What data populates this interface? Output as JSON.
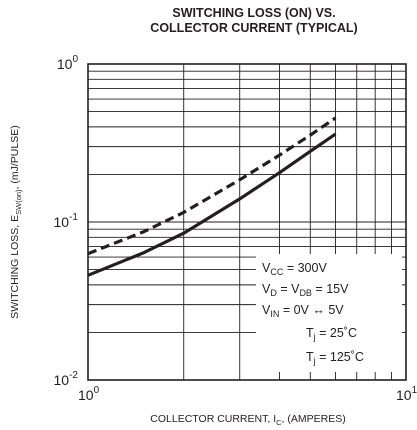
{
  "chart_data": {
    "type": "line",
    "title_line1": "SWITCHING LOSS (ON) VS.",
    "title_line2": "COLLECTOR CURRENT (TYPICAL)",
    "xlabel": {
      "main": "COLLECTOR CURRENT, I",
      "sub": "C",
      "rest": ", (AMPERES)"
    },
    "ylabel": {
      "main": "SWITCHING LOSS, E",
      "sub": "SW(on)",
      "rest": ",  (mJ/PULSE)"
    },
    "x_scale": "log",
    "y_scale": "log",
    "xlim": [
      1,
      10
    ],
    "ylim": [
      0.01,
      1
    ],
    "grid": true,
    "x_ticks": [
      {
        "value": 1,
        "base": "10",
        "exp": "0"
      },
      {
        "value": 10,
        "base": "10",
        "exp": "1"
      }
    ],
    "y_ticks": [
      {
        "value": 1,
        "base": "10",
        "exp": "0"
      },
      {
        "value": 0.1,
        "base": "10",
        "exp": "-1"
      },
      {
        "value": 0.01,
        "base": "10",
        "exp": "-2"
      }
    ],
    "series": [
      {
        "name": "Tj = 25°C",
        "style": "solid",
        "x": [
          1.0,
          1.5,
          2.0,
          3.0,
          4.0,
          5.0,
          6.0
        ],
        "y": [
          0.046,
          0.064,
          0.085,
          0.14,
          0.205,
          0.28,
          0.36
        ]
      },
      {
        "name": "Tj = 125°C",
        "style": "dashed",
        "x": [
          1.0,
          1.5,
          2.0,
          3.0,
          4.0,
          5.0,
          6.0
        ],
        "y": [
          0.063,
          0.087,
          0.115,
          0.185,
          0.265,
          0.355,
          0.455
        ]
      }
    ],
    "legend": {
      "placement": "bottom-right",
      "conditions": [
        {
          "pre": "V",
          "sub": "CC",
          "post": " = 300V"
        },
        {
          "pre": "V",
          "sub": "D",
          "mid": " = V",
          "sub2": "DB",
          "post": " = 15V"
        },
        {
          "pre": "V",
          "sub": "IN",
          "post": " = 0V ↔ 5V"
        }
      ],
      "entries": [
        {
          "pre": "T",
          "sub": "j",
          "post": " = 25˚C",
          "style": "solid"
        },
        {
          "pre": "T",
          "sub": "j",
          "post": " = 125˚C",
          "style": "dashed"
        }
      ]
    },
    "colors": {
      "line": "#231f20",
      "grid": "#231f20",
      "background": "#ffffff"
    }
  }
}
